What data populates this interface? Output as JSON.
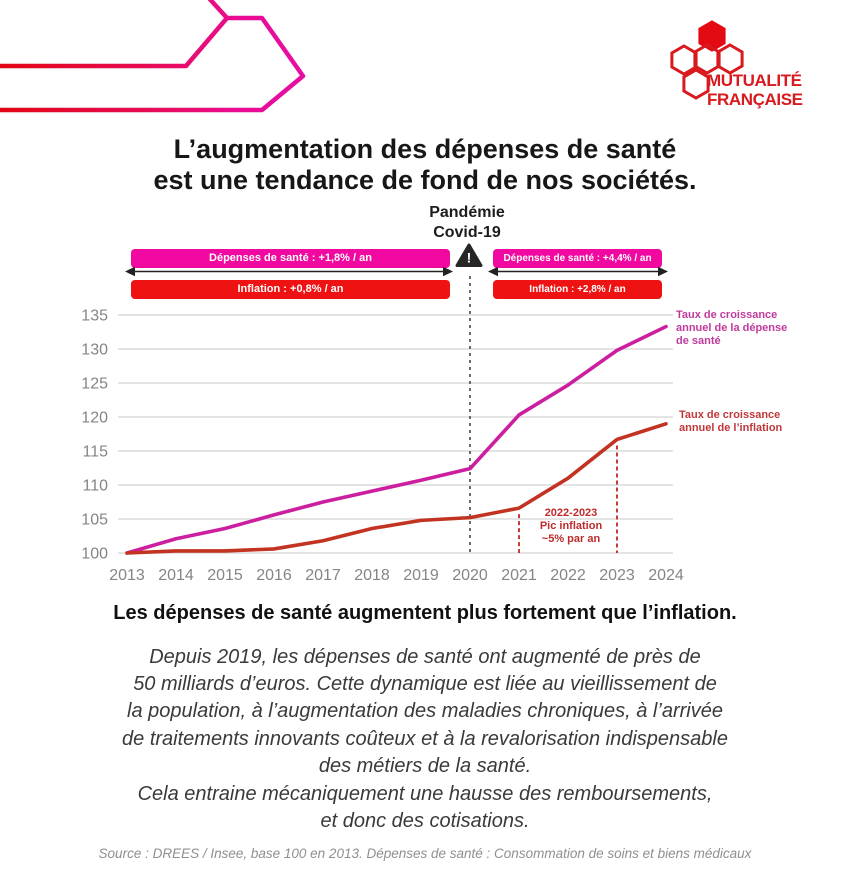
{
  "brand": {
    "name_line1": "MUTUALITÉ",
    "name_line2": "FRANÇAISE",
    "color": "#D8191E"
  },
  "title": "L’augmentation des dépenses de santé\nest une tendance de fond de nos sociétés.",
  "chart": {
    "pandemic_label": "Pandémie\nCovid-19",
    "banners": {
      "health_left": "Dépenses de santé : +1,8% / an",
      "health_right": "Dépenses de santé : +4,4% / an",
      "inflation_left": "Inflation : +0,8% / an",
      "inflation_right": "Inflation : +2,8% / an"
    },
    "label_health": "Taux de croissance\nannuel de la dépense\nde santé",
    "label_inflation": "Taux de croissance\nannuel de l’inflation",
    "annotation": "2022-2023\nPic inflation\n~5% par an",
    "colors": {
      "health_line": "#CC1F9F",
      "inflation_line": "#C23321",
      "banner_health": "#F008A0",
      "banner_inflation": "#EE1212"
    }
  },
  "chart_data": {
    "type": "line",
    "x": [
      2013,
      2014,
      2015,
      2016,
      2017,
      2018,
      2019,
      2020,
      2021,
      2022,
      2023,
      2024
    ],
    "series": [
      {
        "name": "Dépenses de santé (base 100 en 2013)",
        "color": "#CC1F9F",
        "values": [
          100,
          102.1,
          103.6,
          105.6,
          107.5,
          109.1,
          110.7,
          112.4,
          120.3,
          124.7,
          129.8,
          133.3
        ]
      },
      {
        "name": "Inflation (base 100 en 2013)",
        "color": "#C23321",
        "values": [
          100,
          100.3,
          100.3,
          100.6,
          101.8,
          103.6,
          104.8,
          105.2,
          106.6,
          111.0,
          116.7,
          119.0
        ]
      }
    ],
    "ylim": [
      100,
      135
    ],
    "yticks": [
      100,
      105,
      110,
      115,
      120,
      125,
      130,
      135
    ],
    "grid": true,
    "legend_position": "right-of-lines",
    "markers": {
      "covid_year": 2020,
      "inflation_peak_years": [
        2021,
        2023
      ]
    }
  },
  "subtitle": "Les dépenses de santé augmentent plus fortement que l’inflation.",
  "paragraph1": "Depuis 2019, les dépenses de santé ont augmenté de près de\n50 milliards d’euros. Cette dynamique est liée au vieillissement de\nla population, à l’augmentation des maladies chroniques, à l’arrivée\nde traitements innovants coûteux et à la revalorisation indispensable\ndes métiers de la santé.",
  "paragraph2": "Cela entraine mécaniquement une hausse des remboursements,\net donc des cotisations.",
  "source": "Source : DREES / Insee, base 100 en 2013.  Dépenses de santé : Consommation de soins et biens médicaux"
}
